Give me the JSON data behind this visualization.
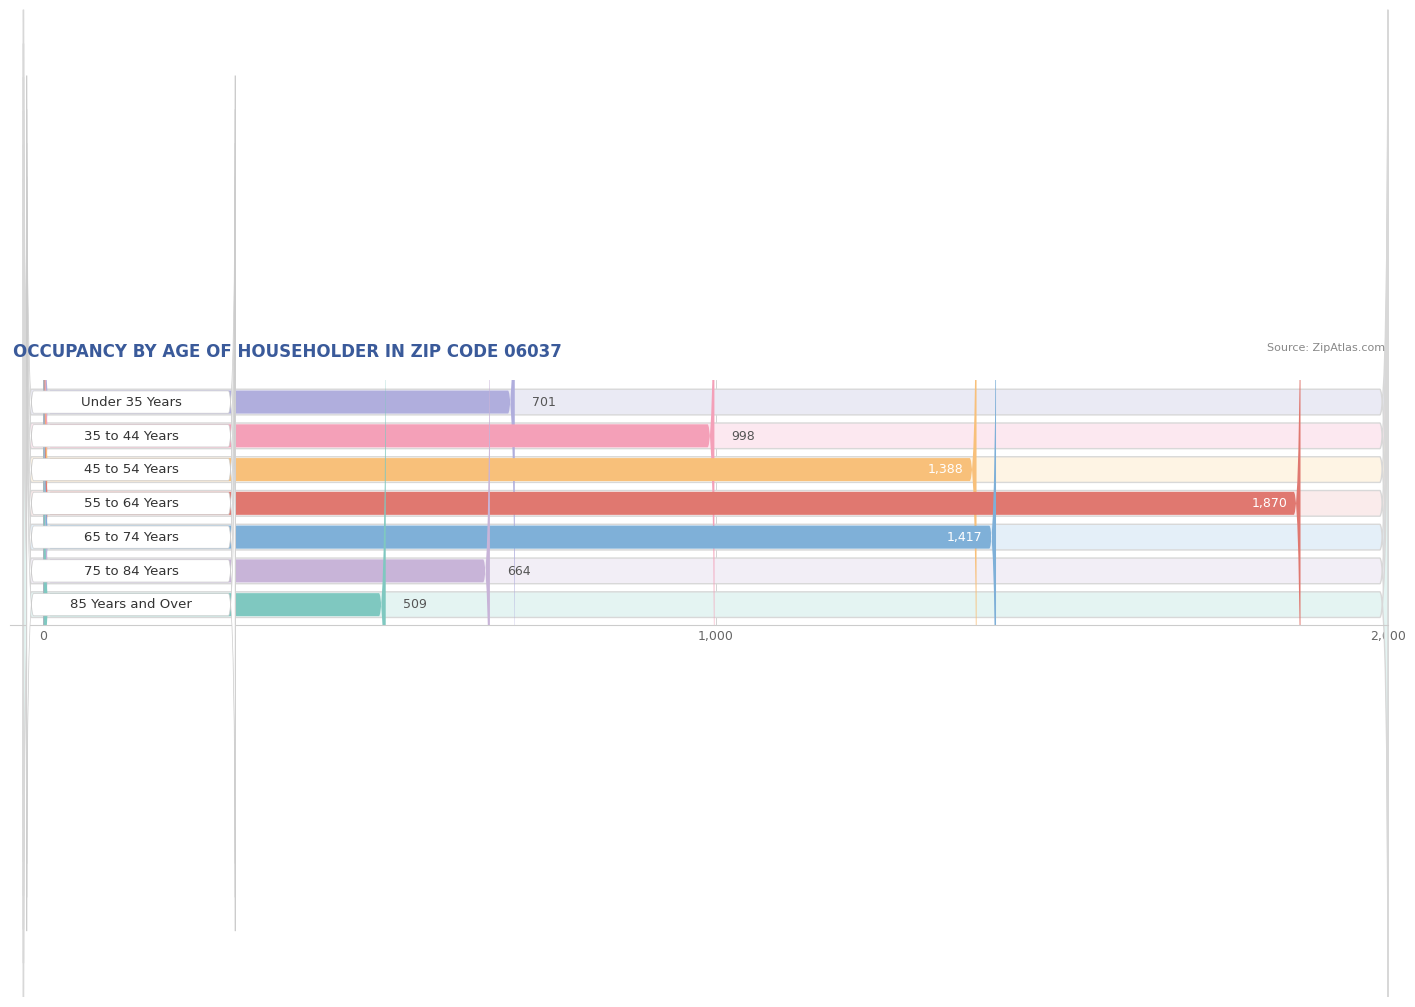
{
  "title": "OCCUPANCY BY AGE OF HOUSEHOLDER IN ZIP CODE 06037",
  "source": "Source: ZipAtlas.com",
  "categories": [
    "Under 35 Years",
    "35 to 44 Years",
    "45 to 54 Years",
    "55 to 64 Years",
    "65 to 74 Years",
    "75 to 84 Years",
    "85 Years and Over"
  ],
  "values": [
    701,
    998,
    1388,
    1870,
    1417,
    664,
    509
  ],
  "bar_colors": [
    "#b0aedd",
    "#f4a0b8",
    "#f8c07a",
    "#e07870",
    "#7fb0d8",
    "#c8b4d8",
    "#7fc8c0"
  ],
  "bar_bg_colors": [
    "#eaeaf4",
    "#fce8f0",
    "#fef4e4",
    "#faebeb",
    "#e4eff8",
    "#f2eef6",
    "#e4f4f2"
  ],
  "row_bg_color": "#f0f0f0",
  "xlim_min": -50,
  "xlim_max": 2000,
  "xticks": [
    0,
    1000,
    2000
  ],
  "xticklabels": [
    "0",
    "1,000",
    "2,000"
  ],
  "title_fontsize": 12,
  "label_fontsize": 9.5,
  "value_fontsize": 9,
  "background_color": "#ffffff",
  "title_color": "#3a5a9a"
}
